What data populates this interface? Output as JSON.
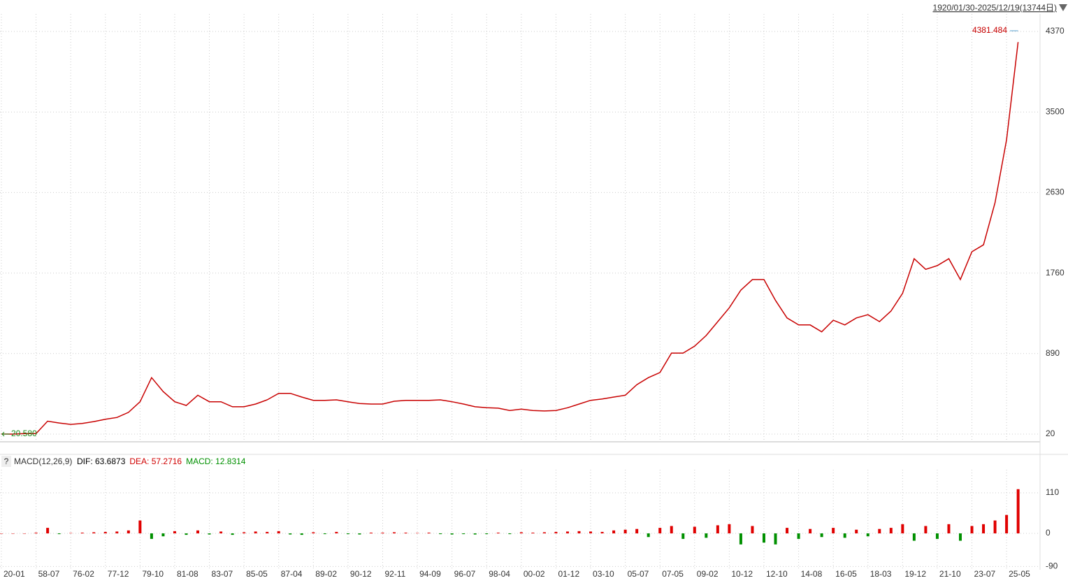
{
  "chart_data": [
    {
      "type": "line",
      "header": "1920/01/30-2025/12/19(13744日)",
      "categories": [
        "20-01",
        null,
        null,
        "58-07",
        null,
        null,
        "76-02",
        null,
        null,
        "77-12",
        null,
        null,
        "79-10",
        null,
        null,
        "81-08",
        null,
        null,
        "83-07",
        null,
        null,
        "85-05",
        null,
        null,
        "87-04",
        null,
        null,
        "89-02",
        null,
        null,
        "90-12",
        null,
        null,
        "92-11",
        null,
        null,
        "94-09",
        null,
        null,
        "96-07",
        null,
        null,
        "98-04",
        null,
        null,
        "00-02",
        null,
        null,
        "01-12",
        null,
        null,
        "03-10",
        null,
        null,
        "05-07",
        null,
        null,
        "07-05",
        null,
        null,
        "09-02",
        null,
        null,
        "10-12",
        null,
        null,
        "12-10",
        null,
        null,
        "14-08",
        null,
        null,
        "16-05",
        null,
        null,
        "18-03",
        null,
        null,
        "19-12",
        null,
        null,
        "21-10",
        null,
        null,
        "23-07",
        null,
        null,
        "25-05",
        null,
        null
      ],
      "series": [
        {
          "color": "#c80000",
          "values": [
            20.58,
            20,
            25,
            25,
            160,
            140,
            125,
            135,
            155,
            180,
            200,
            255,
            370,
            630,
            480,
            370,
            330,
            440,
            370,
            370,
            315,
            315,
            345,
            390,
            460,
            460,
            420,
            385,
            385,
            390,
            370,
            350,
            345,
            345,
            375,
            385,
            385,
            385,
            390,
            370,
            345,
            315,
            305,
            300,
            275,
            290,
            275,
            270,
            275,
            305,
            345,
            385,
            400,
            420,
            440,
            555,
            630,
            685,
            895,
            895,
            970,
            1085,
            1235,
            1385,
            1575,
            1690,
            1690,
            1465,
            1275,
            1200,
            1200,
            1125,
            1250,
            1200,
            1275,
            1310,
            1235,
            1350,
            1540,
            1915,
            1800,
            1840,
            1915,
            1690,
            1990,
            2065,
            2520,
            3200,
            4255,
            null
          ]
        }
      ],
      "ylim": [
        20,
        4370
      ],
      "yticks": [
        20,
        890,
        1760,
        2630,
        3500,
        4370
      ],
      "max_label": "4381.484",
      "min_label": "20.580",
      "grid": true
    },
    {
      "type": "bar",
      "help": "?",
      "title": "MACD(12,26,9)",
      "annotations": [
        {
          "text": "DIF: 63.6873",
          "color": "#000000"
        },
        {
          "text": "DEA: 57.2716",
          "color": "#d00000"
        },
        {
          "text": "MACD: 12.8314",
          "color": "#009000"
        }
      ],
      "values": [
        0,
        0,
        0,
        2,
        15,
        -2,
        1,
        2,
        3,
        4,
        5,
        8,
        35,
        -15,
        -8,
        6,
        -4,
        8,
        -3,
        5,
        -4,
        3,
        5,
        4,
        6,
        -3,
        -4,
        3,
        -2,
        4,
        -2,
        -3,
        2,
        2,
        3,
        2,
        1,
        2,
        -2,
        -3,
        -2,
        -3,
        -2,
        2,
        -2,
        3,
        2,
        3,
        4,
        5,
        6,
        5,
        4,
        8,
        10,
        12,
        -10,
        15,
        20,
        -15,
        18,
        -12,
        22,
        25,
        -30,
        20,
        -25,
        -30,
        15,
        -15,
        12,
        -10,
        15,
        -12,
        10,
        -8,
        12,
        15,
        25,
        -20,
        20,
        -15,
        25,
        -20,
        20,
        25,
        35,
        50,
        120,
        null
      ],
      "up_color": "#e00000",
      "down_color": "#009000",
      "ylim": [
        -100,
        160
      ],
      "yticks": [
        -90,
        0,
        110
      ],
      "grid": true
    }
  ]
}
